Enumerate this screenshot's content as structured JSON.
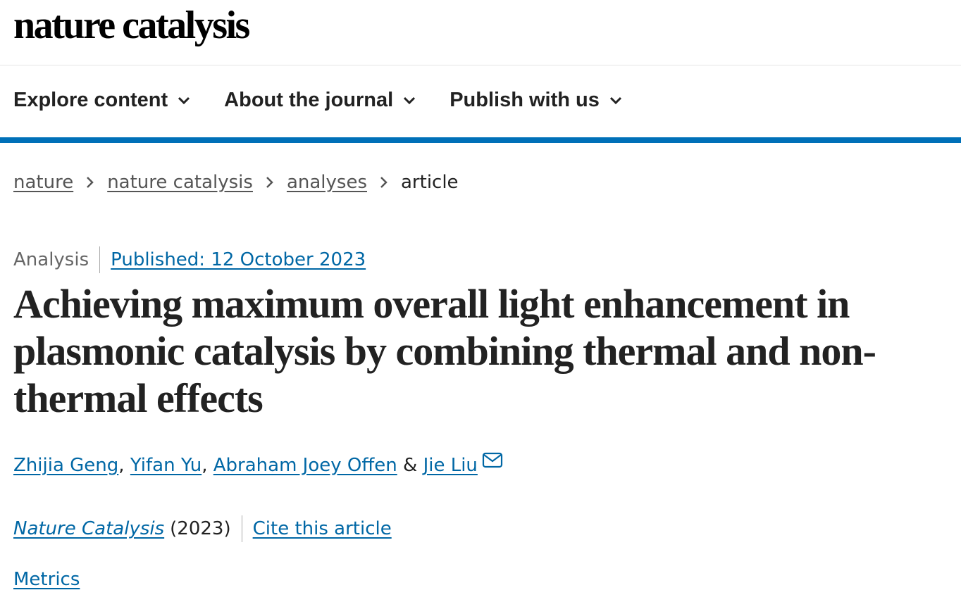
{
  "header": {
    "logo": "nature catalysis"
  },
  "nav": [
    "Explore content",
    "About the journal",
    "Publish with us"
  ],
  "breadcrumbs": [
    "nature",
    "nature catalysis",
    "analyses",
    "article"
  ],
  "article": {
    "type": "Analysis",
    "published": "Published: 12 October 2023",
    "title": "Achieving maximum overall light enhancement in plasmonic catalysis by combining thermal and non-thermal effects",
    "authors": [
      "Zhijia Geng",
      "Yifan Yu",
      "Abraham Joey Offen",
      "Jie Liu"
    ],
    "author_separators": [
      ",",
      ",",
      "&"
    ],
    "journal": "Nature Catalysis",
    "year": "(2023)",
    "cite": "Cite this article",
    "metrics": "Metrics"
  }
}
